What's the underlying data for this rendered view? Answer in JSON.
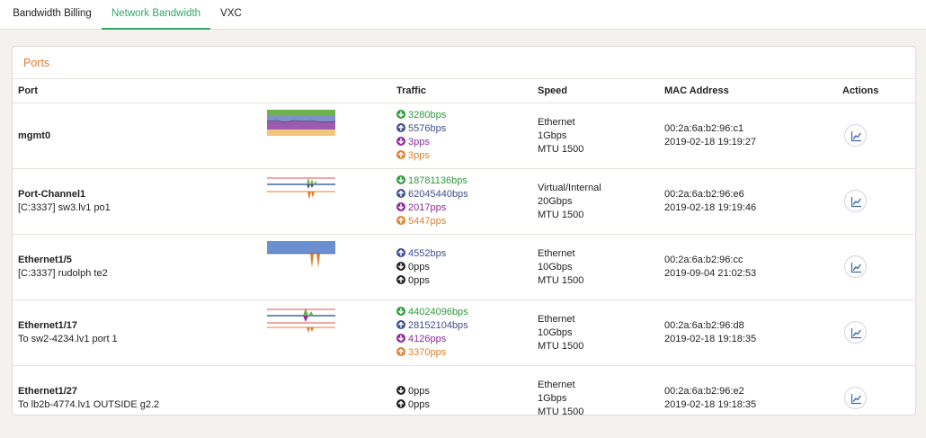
{
  "tabs": [
    {
      "label": "Bandwidth Billing",
      "active": false
    },
    {
      "label": "Network Bandwidth",
      "active": true
    },
    {
      "label": "VXC",
      "active": false
    }
  ],
  "panel": {
    "title": "Ports"
  },
  "columns": {
    "port": "Port",
    "traffic": "Traffic",
    "speed": "Speed",
    "mac": "MAC Address",
    "actions": "Actions"
  },
  "colors": {
    "accent": "#2fa866",
    "title": "#e07a2e",
    "in_bps": "#2f9a3c",
    "out_bps": "#3f4f8e",
    "in_pps": "#8e2b9e",
    "out_pps": "#e0802e",
    "zero": "#222222"
  },
  "rows": [
    {
      "name": "mgmt0",
      "desc": "",
      "traffic": [
        {
          "dir": "down",
          "kind": "in_bps",
          "value": "3280bps"
        },
        {
          "dir": "up",
          "kind": "out_bps",
          "value": "5576bps"
        },
        {
          "dir": "down",
          "kind": "in_pps",
          "value": "3pps"
        },
        {
          "dir": "up",
          "kind": "out_pps",
          "value": "3pps"
        }
      ],
      "speed": [
        "Ethernet",
        "1Gbps",
        "MTU 1500"
      ],
      "mac": "00:2a:6a:b2:96:c1",
      "updated": "2019-02-18 19:19:27",
      "chart": "bands"
    },
    {
      "name": "Port-Channel1",
      "desc": "[C:3337] sw3.lv1 po1",
      "traffic": [
        {
          "dir": "down",
          "kind": "in_bps",
          "value": "18781136bps"
        },
        {
          "dir": "up",
          "kind": "out_bps",
          "value": "62045440bps"
        },
        {
          "dir": "down",
          "kind": "in_pps",
          "value": "2017pps"
        },
        {
          "dir": "up",
          "kind": "out_pps",
          "value": "5447pps"
        }
      ],
      "speed": [
        "Virtual/Internal",
        "20Gbps",
        "MTU 1500"
      ],
      "mac": "00:2a:6a:b2:96:e6",
      "updated": "2019-02-18 19:19:46",
      "chart": "spikes"
    },
    {
      "name": "Ethernet1/5",
      "desc": "[C:3337] rudolph te2",
      "traffic": [
        {
          "dir": "up",
          "kind": "out_bps",
          "value": "4552bps"
        },
        {
          "dir": "down",
          "kind": "zero",
          "value": "0pps"
        },
        {
          "dir": "up",
          "kind": "zero",
          "value": "0pps"
        }
      ],
      "speed": [
        "Ethernet",
        "10Gbps",
        "MTU 1500"
      ],
      "mac": "00:2a:6a:b2:96:cc",
      "updated": "2019-09-04 21:02:53",
      "chart": "block"
    },
    {
      "name": "Ethernet1/17",
      "desc": "To sw2-4234.lv1 port 1",
      "traffic": [
        {
          "dir": "down",
          "kind": "in_bps",
          "value": "44024096bps"
        },
        {
          "dir": "up",
          "kind": "out_bps",
          "value": "28152104bps"
        },
        {
          "dir": "down",
          "kind": "in_pps",
          "value": "4126pps"
        },
        {
          "dir": "up",
          "kind": "out_pps",
          "value": "3370pps"
        }
      ],
      "speed": [
        "Ethernet",
        "10Gbps",
        "MTU 1500"
      ],
      "mac": "00:2a:6a:b2:96:d8",
      "updated": "2019-02-18 19:18:35",
      "chart": "spikes2"
    },
    {
      "name": "Ethernet1/27",
      "desc": "To lb2b-4774.lv1 OUTSIDE g2.2",
      "traffic": [
        {
          "dir": "down",
          "kind": "zero",
          "value": "0pps"
        },
        {
          "dir": "up",
          "kind": "zero",
          "value": "0pps"
        }
      ],
      "speed": [
        "Ethernet",
        "1Gbps",
        "MTU 1500"
      ],
      "mac": "00:2a:6a:b2:96:e2",
      "updated": "2019-02-18 19:18:35",
      "chart": "none"
    }
  ],
  "icons": {
    "action": "line-chart-icon",
    "down": "arrow-down-circle-icon",
    "up": "arrow-up-circle-icon"
  }
}
